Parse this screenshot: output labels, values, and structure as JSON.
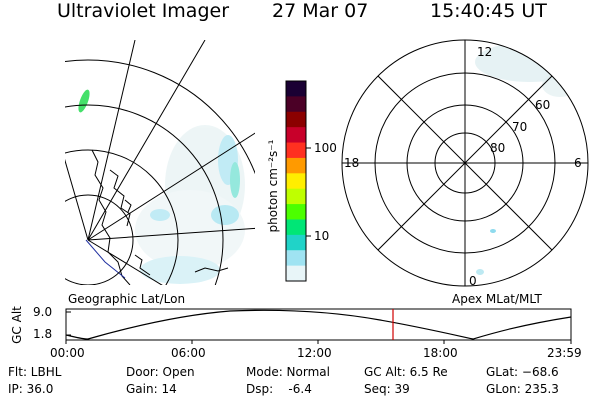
{
  "header": {
    "instrument": "Ultraviolet Imager",
    "date": "27 Mar 07",
    "time": "15:40:45 UT"
  },
  "colorbar": {
    "unit_label": "photon cm⁻²s⁻¹",
    "tick_labels": [
      "100",
      "10"
    ],
    "colors": [
      "#1a0033",
      "#4b0026",
      "#8b0000",
      "#c8002a",
      "#ff3020",
      "#ff9a00",
      "#ffee00",
      "#bfff00",
      "#4cff00",
      "#00e676",
      "#20d3c8",
      "#9fe3f2",
      "#e8f5f8"
    ]
  },
  "left_panel": {
    "caption": "Geographic Lat/Lon"
  },
  "right_panel": {
    "caption": "Apex MLat/MLT",
    "mlt_labels": {
      "top": "12",
      "left": "18",
      "right": "6",
      "bottom": "0"
    },
    "mlat_labels": [
      "60",
      "70",
      "80"
    ]
  },
  "orbit_plot": {
    "ylabel": "GC Alt",
    "y_ticks": [
      "9.0",
      "1.8"
    ],
    "x_ticks": [
      "00:00",
      "06:00",
      "12:00",
      "18:00",
      "23:59"
    ],
    "marker_color": "#d00000"
  },
  "footer": {
    "filter": "Flt: LBHL",
    "ip": "IP: 36.0",
    "door": "Door: Open",
    "gain": "Gain: 14",
    "mode": "Mode: Normal",
    "dsp": "Dsp:    -6.4",
    "gc_alt": "GC Alt: 6.5 Re",
    "seq": "Seq: 39",
    "glat": "GLat: −68.6",
    "glon": "GLon: 235.3"
  }
}
